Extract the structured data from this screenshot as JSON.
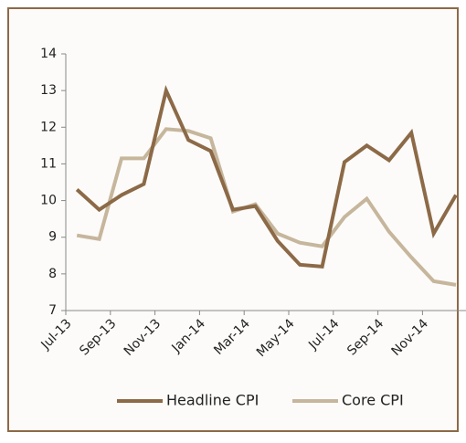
{
  "chart_data": {
    "type": "line",
    "categories": [
      "Jul-13",
      null,
      "Sep-13",
      null,
      "Nov-13",
      null,
      "Jan-14",
      null,
      "Mar-14",
      null,
      "May-14",
      null,
      "Jul-14",
      null,
      "Sep-14",
      null,
      "Nov-14",
      null
    ],
    "series": [
      {
        "name": "Headline CPI",
        "color": "#8c6a47",
        "values": [
          10.3,
          9.75,
          10.15,
          10.45,
          13.0,
          11.65,
          11.35,
          9.75,
          9.85,
          8.9,
          8.25,
          8.2,
          11.05,
          11.5,
          11.1,
          11.85,
          9.1,
          10.15
        ]
      },
      {
        "name": "Core CPI",
        "color": "#c6b69c",
        "values": [
          9.05,
          8.95,
          11.15,
          11.15,
          11.95,
          11.9,
          11.7,
          9.7,
          9.9,
          9.1,
          8.85,
          8.75,
          9.55,
          10.05,
          9.15,
          8.45,
          7.8,
          7.7
        ]
      }
    ],
    "ylim": [
      7,
      14
    ],
    "yticks": [
      7,
      8,
      9,
      10,
      11,
      12,
      13,
      14
    ]
  }
}
